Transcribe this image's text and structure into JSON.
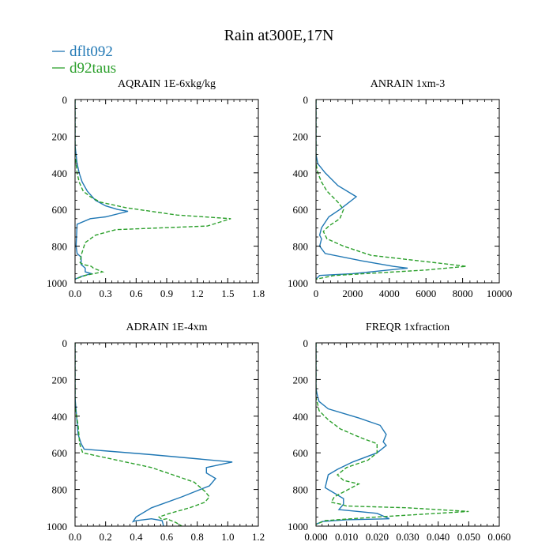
{
  "figure_title": "Rain at300E,17N",
  "legend": [
    {
      "name": "dflt092",
      "color": "#1f77b4",
      "dash": "solid"
    },
    {
      "name": "d92taus",
      "color": "#2ca02c",
      "dash": "dashed"
    }
  ],
  "chart_data": [
    {
      "type": "line",
      "title": "AQRAIN  1E-6xkg/kg",
      "xlabel": "",
      "ylabel": "",
      "xlim": [
        0,
        1.8
      ],
      "ylim": [
        1000,
        0
      ],
      "xticks": [
        "0.0",
        "0.3",
        "0.6",
        "0.9",
        "1.2",
        "1.5",
        "1.8"
      ],
      "yticks": [
        "0",
        "200",
        "400",
        "600",
        "800",
        "1000"
      ],
      "series": [
        {
          "name": "dflt092",
          "x": [
            0,
            0,
            0.01,
            0.02,
            0.04,
            0.07,
            0.12,
            0.2,
            0.3,
            0.42,
            0.52,
            0.3,
            0.15,
            0.02,
            0.01,
            0.02,
            0.06,
            0.06,
            0.1,
            0.1,
            0.16,
            0.06,
            0.0
          ],
          "y": [
            0,
            250,
            300,
            350,
            400,
            450,
            500,
            550,
            580,
            600,
            610,
            640,
            650,
            680,
            800,
            840,
            860,
            900,
            920,
            940,
            950,
            965,
            980
          ]
        },
        {
          "name": "d92taus",
          "x": [
            0,
            0,
            0.01,
            0.02,
            0.04,
            0.08,
            0.15,
            0.25,
            0.5,
            1.0,
            1.53,
            1.3,
            0.4,
            0.2,
            0.1,
            0.06,
            0.05,
            0.08,
            0.16,
            0.18,
            0.27,
            0.1,
            0.0
          ],
          "y": [
            0,
            300,
            350,
            400,
            450,
            500,
            530,
            560,
            590,
            630,
            650,
            690,
            710,
            740,
            780,
            850,
            890,
            900,
            910,
            920,
            940,
            960,
            980
          ]
        }
      ]
    },
    {
      "type": "line",
      "title": "ANRAIN  1xm-3",
      "xlabel": "",
      "ylabel": "",
      "xlim": [
        0,
        10000
      ],
      "ylim": [
        1000,
        0
      ],
      "xticks": [
        "0",
        "2000",
        "4000",
        "6000",
        "8000",
        "10000"
      ],
      "yticks": [
        "0",
        "200",
        "400",
        "600",
        "800",
        "1000"
      ],
      "series": [
        {
          "name": "dflt092",
          "x": [
            0,
            0,
            100,
            500,
            1200,
            2200,
            1300,
            700,
            300,
            200,
            300,
            200,
            500,
            2500,
            4200,
            5000,
            2000,
            200,
            0
          ],
          "y": [
            0,
            300,
            350,
            400,
            470,
            530,
            600,
            640,
            700,
            740,
            760,
            800,
            840,
            880,
            910,
            920,
            950,
            960,
            980
          ]
        },
        {
          "name": "d92taus",
          "x": [
            0,
            0,
            100,
            300,
            600,
            1200,
            1500,
            1300,
            700,
            400,
            600,
            1500,
            3000,
            6500,
            8200,
            6000,
            1000,
            0
          ],
          "y": [
            0,
            350,
            400,
            450,
            500,
            560,
            600,
            650,
            690,
            720,
            760,
            800,
            850,
            890,
            910,
            930,
            960,
            980
          ]
        }
      ]
    },
    {
      "type": "line",
      "title": "ADRAIN  1E-4xm",
      "xlabel": "",
      "ylabel": "",
      "xlim": [
        0,
        1.2
      ],
      "ylim": [
        1000,
        0
      ],
      "xticks": [
        "0.0",
        "0.2",
        "0.4",
        "0.6",
        "0.8",
        "1.0",
        "1.2"
      ],
      "yticks": [
        "0",
        "200",
        "400",
        "600",
        "800",
        "1000"
      ],
      "series": [
        {
          "name": "dflt092",
          "x": [
            0,
            0,
            0.01,
            0.02,
            0.04,
            0.06,
            0.5,
            1.03,
            0.86,
            0.86,
            0.92,
            0.88,
            0.7,
            0.5,
            0.4,
            0.38,
            0.4,
            0.5,
            0.57,
            0.58
          ],
          "y": [
            0,
            300,
            400,
            500,
            550,
            580,
            610,
            650,
            680,
            710,
            740,
            780,
            840,
            900,
            950,
            975,
            970,
            960,
            970,
            1000
          ]
        },
        {
          "name": "d92taus",
          "x": [
            0,
            0,
            0.02,
            0.03,
            0.05,
            0.5,
            0.78,
            0.85,
            0.88,
            0.85,
            0.75,
            0.62,
            0.55,
            0.57,
            0.6,
            0.66,
            0.7
          ],
          "y": [
            0,
            350,
            450,
            550,
            600,
            680,
            760,
            810,
            840,
            870,
            900,
            930,
            950,
            965,
            960,
            980,
            1000
          ]
        }
      ]
    },
    {
      "type": "line",
      "title": "FREQR  1xfraction",
      "xlabel": "",
      "ylabel": "",
      "xlim": [
        0,
        0.06
      ],
      "ylim": [
        1000,
        0
      ],
      "xticks": [
        "0.000",
        "0.010",
        "0.020",
        "0.030",
        "0.040",
        "0.050",
        "0.060"
      ],
      "yticks": [
        "0",
        "200",
        "400",
        "600",
        "800",
        "1000"
      ],
      "series": [
        {
          "name": "dflt092",
          "x": [
            0,
            0,
            0.0005,
            0.001,
            0.004,
            0.014,
            0.021,
            0.023,
            0.022,
            0.023,
            0.02,
            0.012,
            0.007,
            0.004,
            0.003,
            0.005,
            0.009,
            0.009,
            0.0075,
            0.02,
            0.024,
            0.01,
            0.002,
            0
          ],
          "y": [
            0,
            250,
            290,
            320,
            360,
            410,
            450,
            500,
            540,
            560,
            600,
            650,
            690,
            720,
            790,
            810,
            850,
            880,
            910,
            930,
            960,
            965,
            975,
            990
          ]
        },
        {
          "name": "d92taus",
          "x": [
            0,
            0,
            0.0005,
            0.001,
            0.004,
            0.008,
            0.015,
            0.02,
            0.02,
            0.017,
            0.01,
            0.007,
            0.009,
            0.014,
            0.006,
            0.005,
            0.008,
            0.01,
            0.03,
            0.05,
            0.02,
            0.003,
            0
          ],
          "y": [
            0,
            300,
            330,
            370,
            420,
            470,
            520,
            550,
            600,
            640,
            680,
            720,
            750,
            770,
            840,
            870,
            880,
            890,
            900,
            920,
            950,
            970,
            990
          ]
        }
      ]
    }
  ]
}
